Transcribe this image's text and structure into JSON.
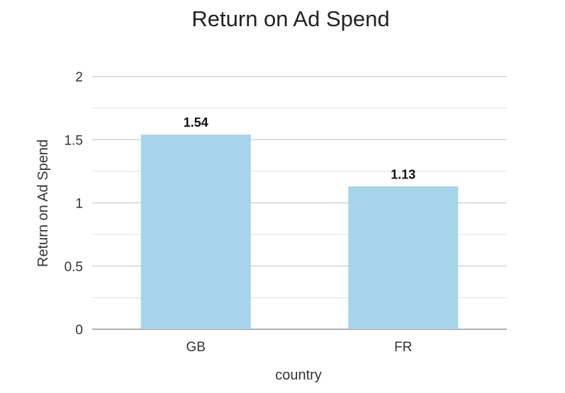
{
  "chart_data": {
    "type": "bar",
    "title": "Return on Ad Spend",
    "xlabel": "country",
    "ylabel": "Return on Ad Spend",
    "categories": [
      "GB",
      "FR"
    ],
    "values": [
      1.54,
      1.13
    ],
    "value_labels": [
      "1.54",
      "1.13"
    ],
    "ylim": [
      0,
      2
    ],
    "yticks": [
      0,
      0.5,
      1,
      1.5,
      2
    ],
    "ytick_labels": [
      "0",
      "0.5",
      "1",
      "1.5",
      "2"
    ],
    "minor_yticks": [
      0.25,
      0.75,
      1.25,
      1.75
    ],
    "grid": true,
    "bar_color": "#a6d4eb",
    "legend": "none"
  }
}
